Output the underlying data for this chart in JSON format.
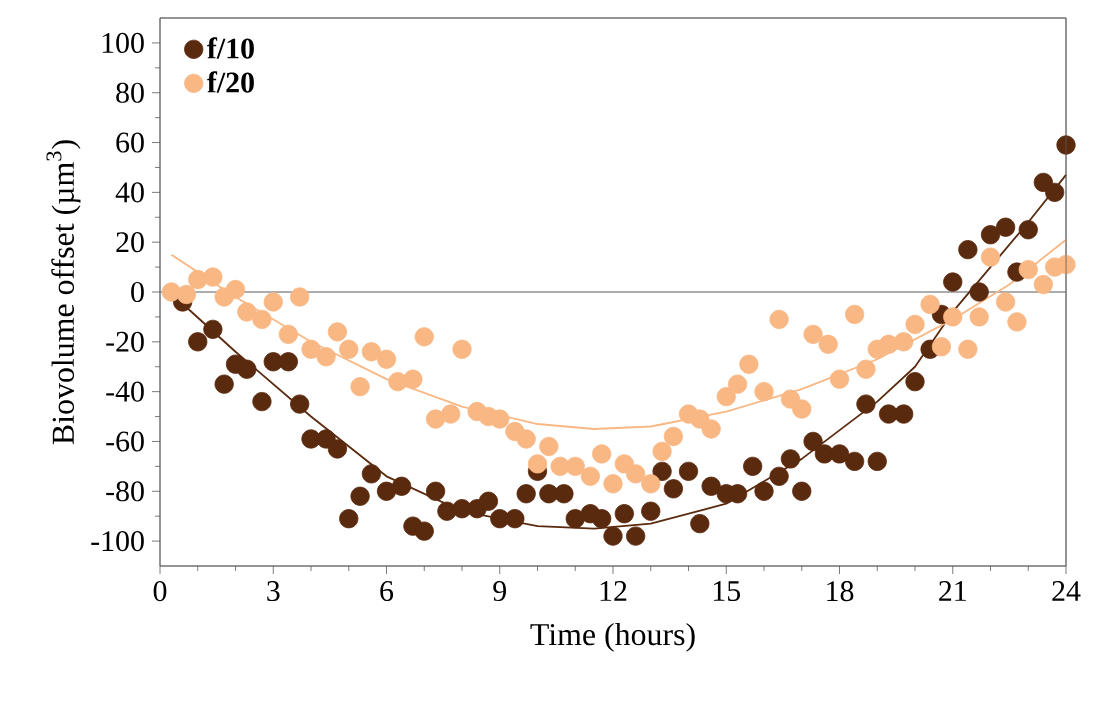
{
  "chart_data": {
    "type": "scatter",
    "xlabel": "Time (hours)",
    "ylabel": "Biovolume offset (µm$^{3}$)",
    "xlim": [
      0,
      24
    ],
    "ylim": [
      -110,
      110
    ],
    "xticks": [
      0,
      3,
      6,
      9,
      12,
      15,
      18,
      21,
      24
    ],
    "yticks": [
      -100,
      -80,
      -60,
      -40,
      -20,
      0,
      20,
      40,
      60,
      80,
      100
    ],
    "grid": false,
    "legend": "top left",
    "ref_lines": [
      {
        "axis": "y",
        "value": 0,
        "color": "#909090"
      }
    ],
    "series": [
      {
        "name": "f/10",
        "color": "#5a2a0e",
        "marker": "circle",
        "x": [
          0.6,
          1.0,
          1.4,
          1.7,
          2.0,
          2.3,
          2.7,
          3.0,
          3.4,
          3.7,
          4.0,
          4.4,
          4.7,
          5.0,
          5.3,
          5.6,
          6.0,
          6.4,
          6.7,
          7.0,
          7.3,
          7.6,
          8.0,
          8.4,
          8.7,
          9.0,
          9.4,
          9.7,
          10.0,
          10.3,
          10.7,
          11.0,
          11.4,
          11.7,
          12.0,
          12.3,
          12.6,
          13.0,
          13.3,
          13.6,
          14.0,
          14.3,
          14.6,
          15.0,
          15.3,
          15.7,
          16.0,
          16.4,
          16.7,
          17.0,
          17.3,
          17.6,
          18.0,
          18.4,
          18.7,
          19.0,
          19.3,
          19.7,
          20.0,
          20.4,
          20.7,
          21.0,
          21.4,
          21.7,
          22.0,
          22.4,
          22.7,
          23.0,
          23.4,
          23.7,
          24.0
        ],
        "values": [
          -4,
          -20,
          -15,
          -37,
          -29,
          -31,
          -44,
          -28,
          -28,
          -45,
          -59,
          -59,
          -63,
          -91,
          -82,
          -73,
          -80,
          -78,
          -94,
          -96,
          -80,
          -88,
          -87,
          -87,
          -84,
          -91,
          -91,
          -81,
          -72,
          -81,
          -81,
          -91,
          -89,
          -91,
          -98,
          -89,
          -98,
          -88,
          -72,
          -79,
          -72,
          -93,
          -78,
          -81,
          -81,
          -70,
          -80,
          -74,
          -67,
          -80,
          -60,
          -65,
          -65,
          -68,
          -45,
          -68,
          -49,
          -49,
          -36,
          -23,
          -9,
          4,
          17,
          0,
          23,
          26,
          8,
          25,
          44,
          40,
          59
        ]
      },
      {
        "name": "f/20",
        "color": "#f9b784",
        "marker": "circle",
        "x": [
          0.3,
          0.7,
          1.0,
          1.4,
          1.7,
          2.0,
          2.3,
          2.7,
          3.0,
          3.4,
          3.7,
          4.0,
          4.4,
          4.7,
          5.0,
          5.3,
          5.6,
          6.0,
          6.3,
          6.7,
          7.0,
          7.3,
          7.7,
          8.0,
          8.4,
          8.7,
          9.0,
          9.4,
          9.7,
          10.0,
          10.3,
          10.6,
          11.0,
          11.4,
          11.7,
          12.0,
          12.3,
          12.6,
          13.0,
          13.3,
          13.6,
          14.0,
          14.3,
          14.6,
          15.0,
          15.3,
          15.6,
          16.0,
          16.4,
          16.7,
          17.0,
          17.3,
          17.7,
          18.0,
          18.4,
          18.7,
          19.0,
          19.3,
          19.7,
          20.0,
          20.4,
          20.7,
          21.0,
          21.4,
          21.7,
          22.0,
          22.4,
          22.7,
          23.0,
          23.4,
          23.7,
          24.0
        ],
        "values": [
          0,
          -1,
          5,
          6,
          -2,
          1,
          -8,
          -11,
          -4,
          -17,
          -2,
          -23,
          -26,
          -16,
          -23,
          -38,
          -24,
          -27,
          -36,
          -35,
          -18,
          -51,
          -49,
          -23,
          -48,
          -50,
          -51,
          -56,
          -59,
          -69,
          -62,
          -70,
          -70,
          -74,
          -65,
          -77,
          -69,
          -73,
          -77,
          -64,
          -58,
          -49,
          -51,
          -55,
          -42,
          -37,
          -29,
          -40,
          -11,
          -43,
          -47,
          -17,
          -21,
          -35,
          -9,
          -31,
          -23,
          -21,
          -20,
          -13,
          -5,
          -22,
          -10,
          -23,
          -10,
          14,
          -4,
          -12,
          9,
          3,
          10,
          11
        ]
      },
      {
        "color": "#5a2a0e",
        "type": "line",
        "marker": "none",
        "x": [
          0.4,
          2,
          4,
          6,
          8,
          10,
          11.5,
          13,
          15,
          17,
          19,
          20,
          21,
          22,
          23,
          24
        ],
        "values": [
          -2,
          -24,
          -50,
          -74,
          -88,
          -94,
          -95,
          -93,
          -85,
          -67,
          -44,
          -30,
          -8,
          10,
          28,
          47
        ]
      },
      {
        "color": "#f9b784",
        "type": "line",
        "marker": "none",
        "x": [
          0.3,
          2,
          4,
          6,
          8,
          10,
          11.5,
          13,
          15,
          17,
          19,
          21,
          22.5,
          24
        ],
        "values": [
          15,
          -2,
          -20,
          -35,
          -46,
          -53,
          -55,
          -54,
          -48,
          -39,
          -27,
          -11,
          3,
          21
        ]
      }
    ]
  }
}
